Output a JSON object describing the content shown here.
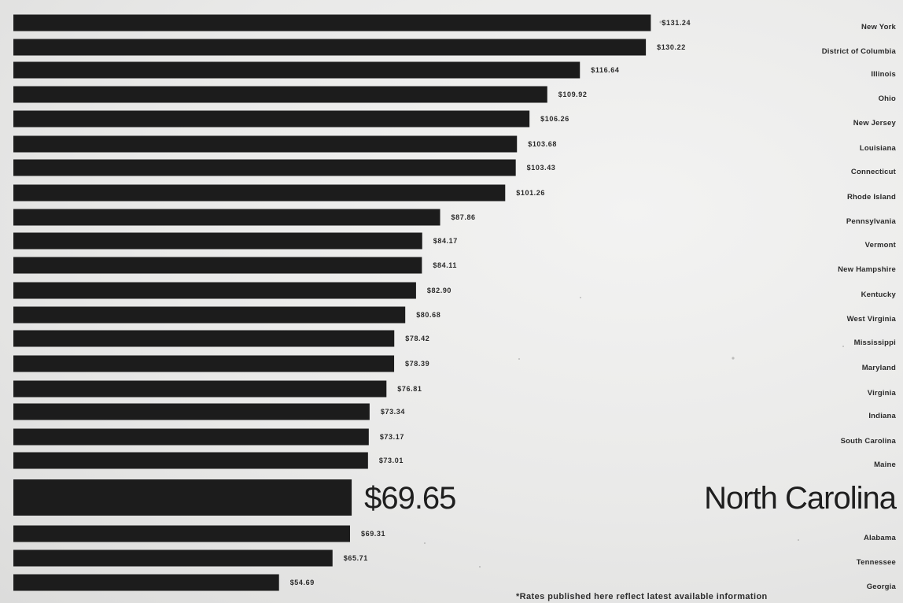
{
  "chart_data": {
    "type": "bar",
    "orientation": "horizontal",
    "categories": [
      "New York",
      "District of Columbia",
      "Illinois",
      "Ohio",
      "New Jersey",
      "Louisiana",
      "Connecticut",
      "Rhode Island",
      "Pennsylvania",
      "Vermont",
      "New Hampshire",
      "Kentucky",
      "West Virginia",
      "Mississippi",
      "Maryland",
      "Virginia",
      "Indiana",
      "South Carolina",
      "Maine",
      "North Carolina",
      "Alabama",
      "Tennessee",
      "Georgia"
    ],
    "values": [
      131.24,
      130.22,
      116.64,
      109.92,
      106.26,
      103.68,
      103.43,
      101.26,
      87.86,
      84.17,
      84.11,
      82.9,
      80.68,
      78.42,
      78.39,
      76.81,
      73.34,
      73.17,
      73.01,
      69.65,
      69.31,
      65.71,
      54.69
    ],
    "value_labels": [
      "$131.24",
      "$130.22",
      "$116.64",
      "$109.92",
      "$106.26",
      "$103.68",
      "$103.43",
      "$101.26",
      "$87.86",
      "$84.17",
      "$84.11",
      "$82.90",
      "$80.68",
      "$78.42",
      "$78.39",
      "$76.81",
      "$73.34",
      "$73.17",
      "$73.01",
      "$69.65",
      "$69.31",
      "$65.71",
      "$54.69"
    ],
    "highlight_category": "North Carolina",
    "bar_color": "#1c1c1c",
    "grid": false,
    "legend": "none",
    "footnote": "*Rates published here reflect latest available information"
  }
}
